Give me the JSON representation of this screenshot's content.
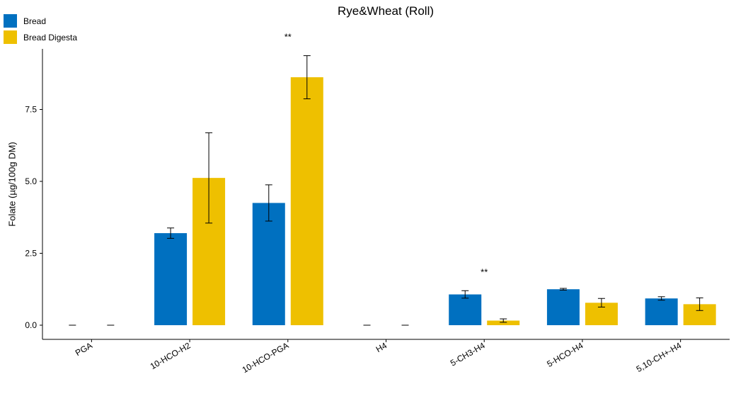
{
  "chart_data": {
    "type": "bar",
    "title": "Rye&Wheat (Roll)",
    "xlabel": "",
    "ylabel": "Folate (µg/100g DM)",
    "categories": [
      "PGA",
      "10-HCO-H2",
      "10-HCO-PGA",
      "H4",
      "5-CH3-H4",
      "5-HCO-H4",
      "5,10-CH+-H4"
    ],
    "series": [
      {
        "name": "Bread",
        "color": "#0070C0",
        "values": [
          0,
          3.2,
          4.25,
          0,
          1.07,
          1.25,
          0.93
        ],
        "errors": [
          0,
          0.18,
          0.63,
          0,
          0.13,
          0.03,
          0.06
        ]
      },
      {
        "name": "Bread Digesta",
        "color": "#EEC000",
        "values": [
          0,
          5.12,
          8.62,
          0,
          0.16,
          0.78,
          0.73
        ],
        "errors": [
          0,
          1.57,
          0.75,
          0,
          0.06,
          0.15,
          0.22
        ]
      }
    ],
    "significance": [
      {
        "category": "10-HCO-PGA",
        "label": "**"
      },
      {
        "category": "5-CH3-H4",
        "label": "**"
      }
    ],
    "yticks": [
      "0.0",
      "2.5",
      "5.0",
      "7.5"
    ],
    "ylim": [
      -0.5,
      9.5
    ],
    "legend_position": "top-left",
    "grid": false
  }
}
